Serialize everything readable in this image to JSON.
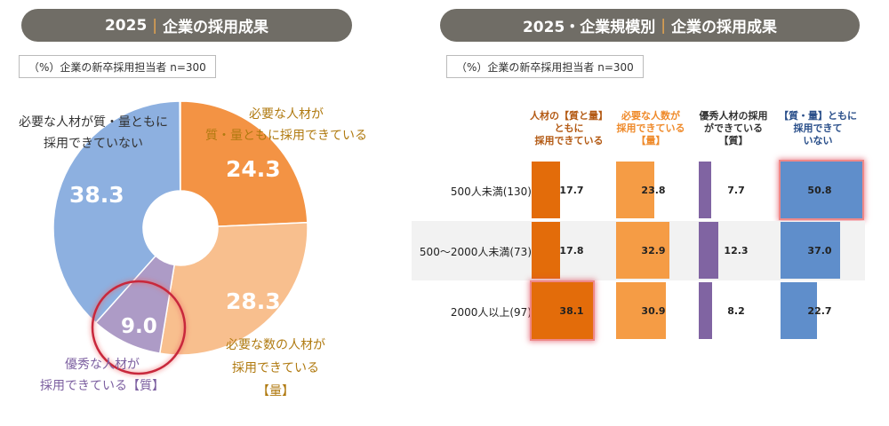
{
  "left": {
    "title_year": "2025",
    "title_text": "企業の採用成果",
    "note": "（%）企業の新卒採用担当者 n=300"
  },
  "right": {
    "title_year": "2025・企業規模別",
    "title_text": "企業の採用成果",
    "note": "（%）企業の新卒採用担当者 n=300"
  },
  "chart_data": [
    {
      "type": "pie",
      "title": "2025 | 企業の採用成果",
      "slices": [
        {
          "label": "必要な人材が質・量ともに採用できている",
          "value": 24.3,
          "color": "#f39344"
        },
        {
          "label": "必要な数の人材が採用できている【量】",
          "value": 28.3,
          "color": "#f8bf8e"
        },
        {
          "label": "優秀な人材が採用できている【質】",
          "value": 9.0,
          "color": "#ad9bc6"
        },
        {
          "label": "必要な人材が質・量ともに採用できていない",
          "value": 38.3,
          "color": "#8db0e0"
        }
      ],
      "labels": {
        "s0a": "必要な人材が",
        "s0b": "質・量ともに採用できている",
        "s1a": "必要な数の人材が",
        "s1b": "採用できている",
        "s1c": "【量】",
        "s2a": "優秀な人材が",
        "s2b": "採用できている【質】",
        "s3a": "必要な人材が質・量ともに",
        "s3b": "採用できていない"
      },
      "display": [
        "24.3",
        "28.3",
        "9.0",
        "38.3"
      ]
    },
    {
      "type": "bar",
      "title": "2025・企業規模別 | 企業の採用成果",
      "columns": [
        {
          "l1": "人材の【質と量】",
          "l2": "ともに",
          "l3": "採用できている",
          "color": "#e36c0a",
          "hcolor": "#b35a14"
        },
        {
          "l1": "必要な人数が",
          "l2": "採用できている",
          "l3": "【量】",
          "color": "#f59c45",
          "hcolor": "#ef8a2a"
        },
        {
          "l1": "優秀人材の採用",
          "l2": "ができている",
          "l3": "【質】",
          "color": "#8064a2",
          "hcolor": "#333"
        },
        {
          "l1": "【質・量】ともに",
          "l2": "採用できて",
          "l3": "いない",
          "color": "#5f8ecb",
          "hcolor": "#2a4f8a"
        }
      ],
      "rows": [
        {
          "label": "500人未満(130)",
          "values": [
            17.7,
            23.8,
            7.7,
            50.8
          ],
          "display": [
            "17.7",
            "23.8",
            "7.7",
            "50.8"
          ]
        },
        {
          "label": "500～2000人未満(73)",
          "values": [
            17.8,
            32.9,
            12.3,
            37.0
          ],
          "display": [
            "17.8",
            "32.9",
            "12.3",
            "37.0"
          ]
        },
        {
          "label": "2000人以上(97)",
          "values": [
            38.1,
            30.9,
            8.2,
            22.7
          ],
          "display": [
            "38.1",
            "30.9",
            "8.2",
            "22.7"
          ]
        }
      ]
    }
  ]
}
